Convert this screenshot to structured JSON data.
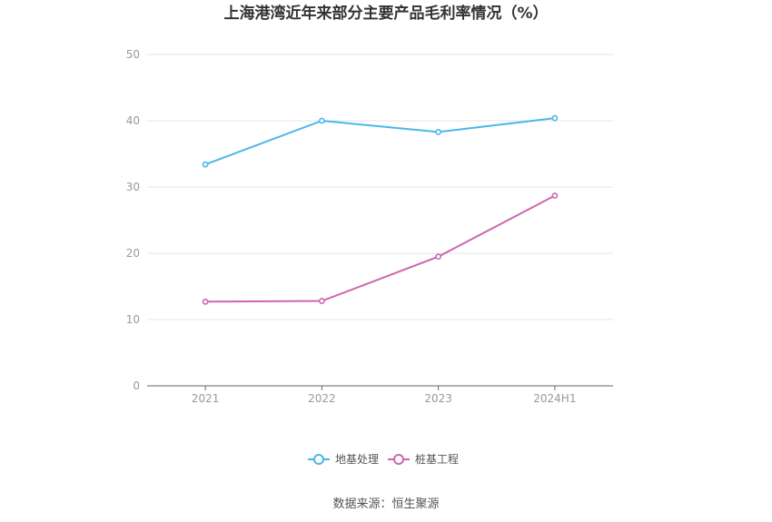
{
  "chart_data": {
    "type": "line",
    "title": "上海港湾近年来部分主要产品毛利率情况（%）",
    "categories": [
      "2021",
      "2022",
      "2023",
      "2024H1"
    ],
    "series": [
      {
        "name": "地基处理",
        "values": [
          33.4,
          40.0,
          38.3,
          40.4
        ],
        "color": "#4cb6e8"
      },
      {
        "name": "桩基工程",
        "values": [
          12.7,
          12.8,
          19.5,
          28.7
        ],
        "color": "#cc66b0"
      }
    ],
    "ylim": [
      0,
      50
    ],
    "yticks": [
      0,
      10,
      20,
      30,
      40,
      50
    ],
    "grid": true,
    "legend": "bottom-center",
    "source": "数据来源：恒生聚源"
  }
}
